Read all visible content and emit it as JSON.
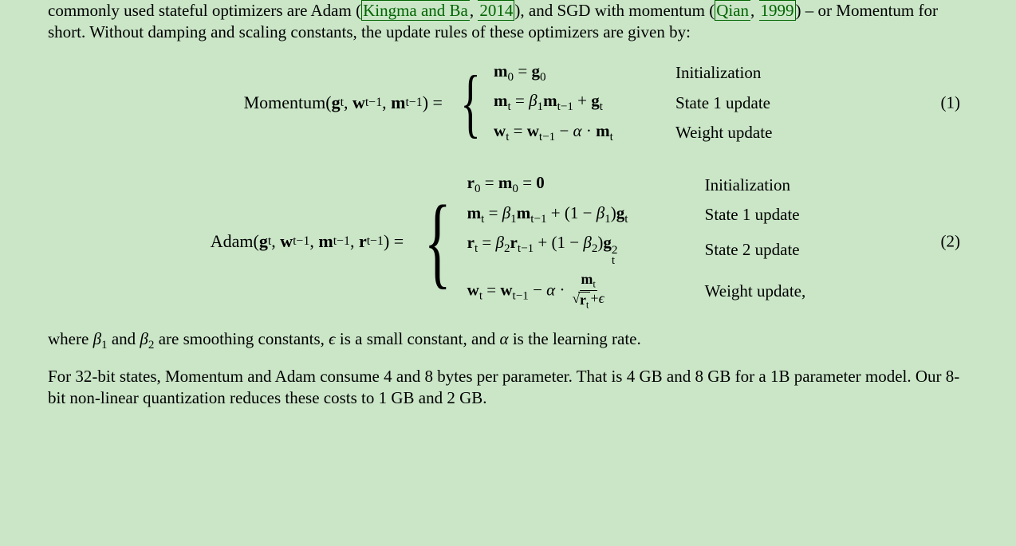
{
  "paragraphs": {
    "p1_a": "commonly used stateful optimizers are Adam (",
    "cite1_auth": "Kingma and Ba",
    "cite1_sep": ", ",
    "cite1_year": "2014",
    "p1_b": "), and SGD with momentum (",
    "cite2_auth": "Qian",
    "cite2_sep": ", ",
    "cite2_year": "1999",
    "p1_c": ") – or Momentum for short. Without damping and scaling constants, the update rules of these optimizers are given by:",
    "where": "where β₁ and β₂ are smoothing constants, ϵ is a small constant, and α is the learning rate.",
    "p2": "For 32-bit states, Momentum and Adam consume 4 and 8 bytes per parameter. That is 4 GB and 8 GB for a 1B parameter model. Our 8-bit non-linear quantization reduces these costs to 1 GB and 2 GB."
  },
  "eq1": {
    "number": "(1)",
    "fn": "Momentum",
    "brace": "{",
    "labels": [
      "Initialization",
      "State 1 update",
      "Weight update"
    ],
    "math_col_w": 210,
    "brace_size": 96
  },
  "eq2": {
    "number": "(2)",
    "fn": "Adam",
    "brace": "{",
    "labels": [
      "Initialization",
      "State 1 update",
      "State 2 update",
      "Weight update,"
    ],
    "math_col_w": 280,
    "brace_size": 128
  },
  "style": {
    "bg": "#cae6c7",
    "text": "#000000",
    "link": "#006400",
    "font": "Times New Roman",
    "font_size_pt": 16
  }
}
